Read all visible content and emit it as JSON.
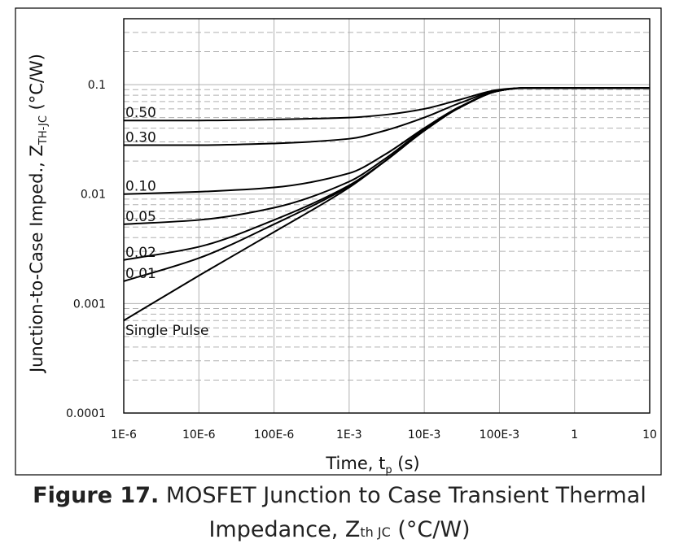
{
  "chart_data": {
    "type": "line",
    "x_scale": "log",
    "y_scale": "log",
    "xlim": [
      1e-06,
      10
    ],
    "ylim": [
      0.0001,
      0.4
    ],
    "x_ticks": [
      {
        "value": 1e-06,
        "label": "1E-6"
      },
      {
        "value": 1e-05,
        "label": "10E-6"
      },
      {
        "value": 0.0001,
        "label": "100E-6"
      },
      {
        "value": 0.001,
        "label": "1E-3"
      },
      {
        "value": 0.01,
        "label": "10E-3"
      },
      {
        "value": 0.1,
        "label": "100E-3"
      },
      {
        "value": 1,
        "label": "1"
      },
      {
        "value": 10,
        "label": "10"
      }
    ],
    "y_ticks": [
      {
        "value": 0.1,
        "label": "0.1"
      },
      {
        "value": 0.01,
        "label": "0.01"
      },
      {
        "value": 0.001,
        "label": "0.001"
      },
      {
        "value": 0.0001,
        "label": "0.0001"
      }
    ],
    "xlabel": "Time, t",
    "xlabel_sub": "p",
    "xlabel_unit": " (s)",
    "ylabel": "Junction-to-Case Imped., Z",
    "ylabel_sub": "TH-JC",
    "ylabel_unit": " (°C/W)",
    "grid": true,
    "series": [
      {
        "name": "0.50",
        "x": [
          1e-06,
          1e-05,
          0.0001,
          0.001,
          0.003,
          0.01,
          0.03,
          0.1,
          0.2,
          10
        ],
        "y": [
          0.047,
          0.047,
          0.048,
          0.05,
          0.053,
          0.06,
          0.073,
          0.09,
          0.093,
          0.093
        ]
      },
      {
        "name": "0.30",
        "x": [
          1e-06,
          1e-05,
          0.0001,
          0.001,
          0.003,
          0.01,
          0.03,
          0.1,
          0.2,
          10
        ],
        "y": [
          0.028,
          0.028,
          0.029,
          0.032,
          0.038,
          0.05,
          0.068,
          0.089,
          0.093,
          0.093
        ]
      },
      {
        "name": "0.10",
        "x": [
          1e-06,
          1e-05,
          0.0001,
          0.001,
          0.003,
          0.01,
          0.03,
          0.1,
          0.2,
          10
        ],
        "y": [
          0.01,
          0.0105,
          0.0115,
          0.0155,
          0.023,
          0.04,
          0.063,
          0.088,
          0.093,
          0.093
        ]
      },
      {
        "name": "0.05",
        "x": [
          1e-06,
          1e-05,
          0.0001,
          0.001,
          0.003,
          0.01,
          0.03,
          0.1,
          0.2,
          10
        ],
        "y": [
          0.0053,
          0.0058,
          0.0075,
          0.013,
          0.021,
          0.039,
          0.062,
          0.088,
          0.093,
          0.093
        ]
      },
      {
        "name": "0.02",
        "x": [
          1e-06,
          1e-05,
          0.0001,
          0.001,
          0.003,
          0.01,
          0.03,
          0.1,
          0.2,
          10
        ],
        "y": [
          0.0025,
          0.0033,
          0.0058,
          0.012,
          0.02,
          0.038,
          0.062,
          0.088,
          0.093,
          0.093
        ]
      },
      {
        "name": "0.01",
        "x": [
          1e-06,
          1e-05,
          0.0001,
          0.001,
          0.003,
          0.01,
          0.03,
          0.1,
          0.2,
          10
        ],
        "y": [
          0.0016,
          0.0026,
          0.0053,
          0.0118,
          0.02,
          0.038,
          0.062,
          0.088,
          0.093,
          0.093
        ]
      },
      {
        "name": "Single Pulse",
        "x": [
          1e-06,
          1e-05,
          0.0001,
          0.001,
          0.003,
          0.01,
          0.03,
          0.1,
          0.2,
          10
        ],
        "y": [
          0.0007,
          0.0018,
          0.0045,
          0.0115,
          0.02,
          0.038,
          0.062,
          0.088,
          0.093,
          0.093
        ]
      }
    ],
    "line_color": "#000000",
    "grid_color": "#b0b0b0"
  },
  "caption": {
    "figure": "Figure 17.",
    "text_line1": " MOSFET Junction to Case Transient Thermal",
    "text_line2": "Impedance, Z",
    "text_sub": "th JC",
    "text_unit": " (°C/W)"
  }
}
